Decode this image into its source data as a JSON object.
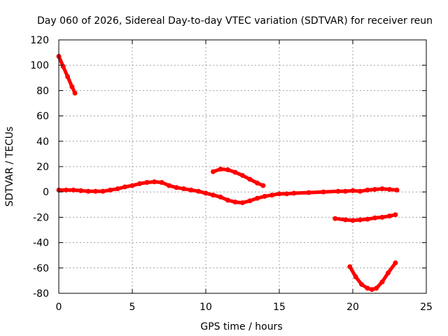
{
  "chart_data": {
    "type": "line",
    "title": "Day 060 of 2026, Sidereal Day-to-day VTEC variation (SDTVAR) for receiver reun",
    "xlabel": "GPS time / hours",
    "ylabel": "SDTVAR / TECUs",
    "xlim": [
      0,
      25
    ],
    "ylim": [
      -80,
      120
    ],
    "x_ticks": [
      0,
      5,
      10,
      15,
      20,
      25
    ],
    "y_ticks": [
      -80,
      -60,
      -40,
      -20,
      0,
      20,
      40,
      60,
      80,
      100,
      120
    ],
    "x_tick_labels": [
      "0",
      "5",
      "10",
      "15",
      "20",
      "25"
    ],
    "y_tick_labels": [
      "-80",
      "-60",
      "-40",
      "-20",
      "0",
      "20",
      "40",
      "60",
      "80",
      "100",
      "120"
    ],
    "grid": true,
    "legend": "none",
    "series_color": "#ff0000",
    "series": [
      {
        "x": [
          0.0,
          0.3,
          0.6,
          0.9,
          1.1
        ],
        "y": [
          107,
          99,
          91,
          83,
          78
        ]
      },
      {
        "x": [
          0.0,
          0.5,
          1.0,
          1.5,
          2.0,
          2.5,
          3.0,
          3.5,
          4.0,
          4.5,
          5.0,
          5.5,
          6.0,
          6.5,
          7.0,
          7.5,
          8.0,
          8.5,
          9.0,
          9.5,
          10.0,
          10.5,
          11.0,
          11.5,
          12.0,
          12.5,
          13.0,
          13.5,
          14.0,
          14.5,
          15.0,
          15.5,
          16.0,
          17.0,
          18.0,
          19.0,
          19.5,
          20.0,
          20.5,
          21.0,
          21.5,
          22.0,
          22.5,
          23.0
        ],
        "y": [
          1.5,
          1.5,
          1.5,
          1.0,
          0.5,
          0.5,
          0.5,
          1.5,
          2.5,
          4.0,
          5.0,
          6.5,
          7.5,
          8.0,
          7.5,
          5.0,
          3.5,
          2.5,
          1.5,
          0.5,
          -1.0,
          -2.5,
          -4.0,
          -6.5,
          -8.0,
          -8.5,
          -7.0,
          -5.0,
          -3.5,
          -2.5,
          -1.5,
          -1.5,
          -1.0,
          -0.5,
          0.0,
          0.5,
          0.5,
          1.0,
          0.5,
          1.5,
          2.0,
          2.5,
          2.0,
          1.5
        ]
      },
      {
        "x": [
          10.5,
          11.0,
          11.5,
          12.0,
          12.5,
          13.0,
          13.5,
          13.9
        ],
        "y": [
          16,
          18,
          17.5,
          15.5,
          13,
          10,
          7,
          5
        ]
      },
      {
        "x": [
          18.8,
          19.5,
          20.0,
          20.5,
          21.0,
          21.5,
          22.0,
          22.5,
          22.9
        ],
        "y": [
          -21,
          -22,
          -22.5,
          -22,
          -21.5,
          -20.5,
          -20,
          -19,
          -18
        ]
      },
      {
        "x": [
          19.8,
          20.2,
          20.6,
          21.0,
          21.3,
          21.6,
          22.0,
          22.4,
          22.9
        ],
        "y": [
          -59,
          -67,
          -73,
          -76,
          -77,
          -76,
          -71,
          -64,
          -56
        ]
      }
    ]
  }
}
